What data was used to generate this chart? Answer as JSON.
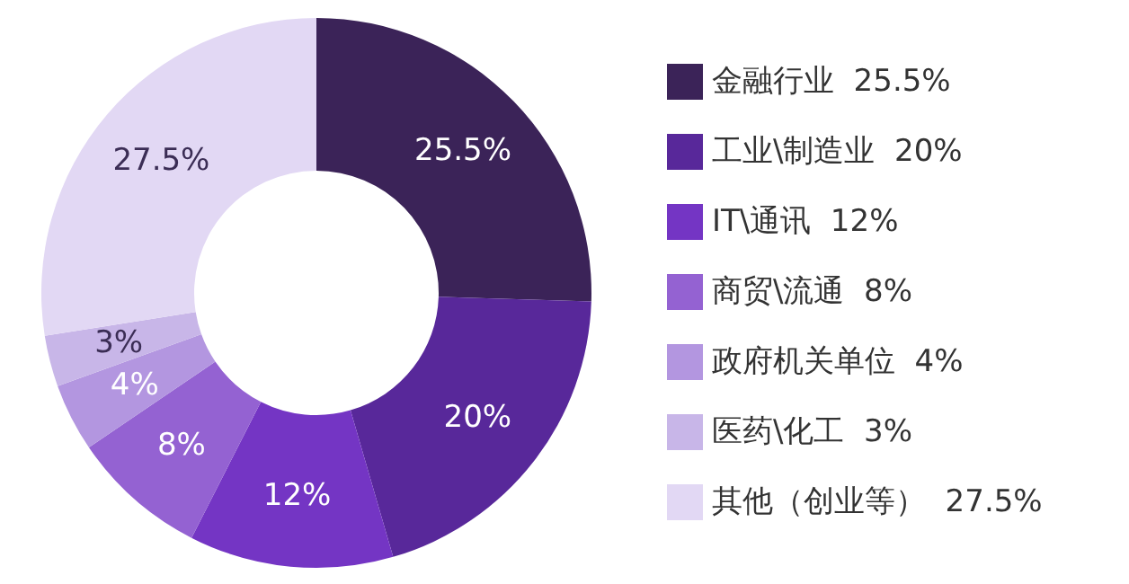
{
  "chart_data": {
    "type": "donut",
    "categories": [
      "金融行业",
      "工业\\制造业",
      "IT\\通讯",
      "商贸\\流通",
      "政府机关单位",
      "医药\\化工",
      "其他（创业等）"
    ],
    "values": [
      25.5,
      20,
      12,
      8,
      4,
      3,
      27.5
    ],
    "value_labels": [
      "25.5%",
      "20%",
      "12%",
      "8%",
      "4%",
      "3%",
      "27.5%"
    ],
    "colors": [
      "#3b2358",
      "#58289a",
      "#7435c4",
      "#9462d2",
      "#b396e0",
      "#c8b6e8",
      "#e2d8f4"
    ],
    "legend": "right",
    "data_labels": true
  }
}
